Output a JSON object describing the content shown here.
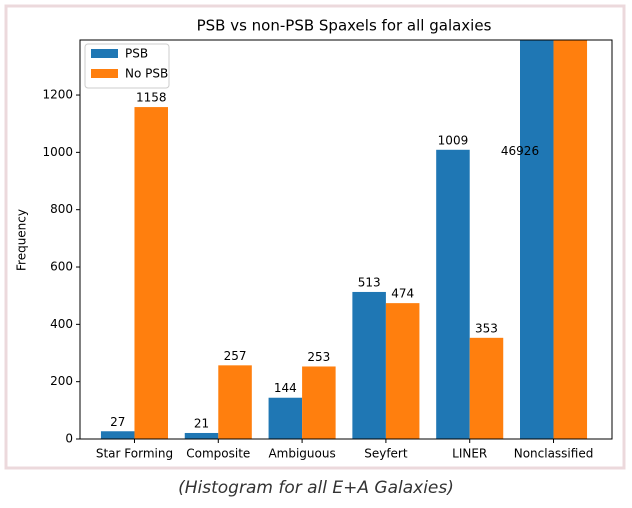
{
  "chart_data": {
    "type": "bar",
    "title": "PSB vs non-PSB Spaxels for all galaxies",
    "ylabel": "Frequency",
    "categories": [
      "Star Forming",
      "Composite",
      "Ambiguous",
      "Seyfert",
      "LINER",
      "Nonclassified"
    ],
    "series": [
      {
        "name": "PSB",
        "color": "#1f77b4",
        "values": [
          27,
          21,
          144,
          513,
          1009,
          46926
        ],
        "value_labels": [
          "27",
          "21",
          "144",
          "513",
          "1009",
          "46926"
        ]
      },
      {
        "name": "No PSB",
        "color": "#ff7f0e",
        "values": [
          1158,
          257,
          253,
          474,
          353,
          1400
        ],
        "value_labels": [
          "1158",
          "257",
          "253",
          "474",
          "353",
          null
        ]
      }
    ],
    "ylim": [
      0,
      1392
    ],
    "yticks": [
      0,
      200,
      400,
      600,
      800,
      1000,
      1200
    ],
    "legend": "upper left"
  },
  "caption": "(Histogram for all E+A Galaxies)"
}
